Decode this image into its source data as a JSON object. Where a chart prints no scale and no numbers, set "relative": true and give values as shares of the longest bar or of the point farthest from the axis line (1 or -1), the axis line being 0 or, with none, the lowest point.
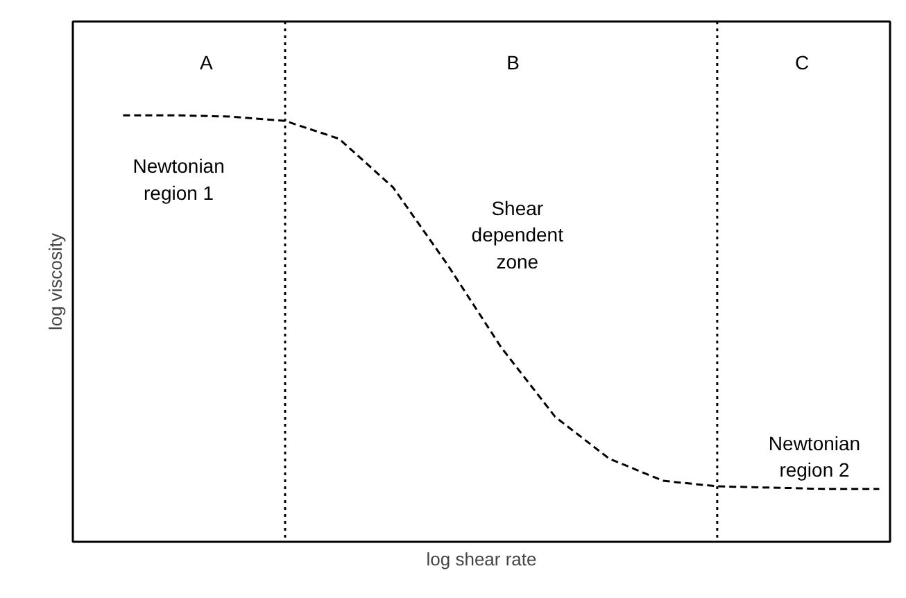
{
  "chart_data": {
    "type": "line",
    "relative": true,
    "xlabel": "log shear rate",
    "ylabel": "log viscosity",
    "categories": [
      null,
      null,
      null,
      null,
      null,
      null,
      null,
      null,
      null,
      null,
      null,
      null,
      null,
      null,
      null
    ],
    "series": [
      {
        "color": "#000000",
        "values": [
          1,
          1,
          0.997,
          0.987,
          0.945,
          0.831,
          0.651,
          0.456,
          0.293,
          0.195,
          0.143,
          0.13,
          0.127,
          0.124,
          0.124
        ]
      }
    ],
    "line_style": "dashed",
    "annotations": [
      "A",
      "B",
      "C",
      "Newtonian\nregion 1",
      "Shear\ndependent\nzone",
      "Newtonian\nregion 2"
    ]
  }
}
